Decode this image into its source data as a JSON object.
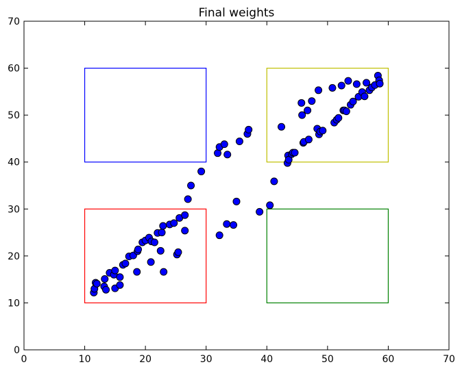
{
  "chart_data": {
    "type": "scatter",
    "title": "Final weights",
    "xlabel": "",
    "ylabel": "",
    "xlim": [
      0,
      70
    ],
    "ylim": [
      0,
      70
    ],
    "xticks": [
      0,
      10,
      20,
      30,
      40,
      50,
      60,
      70
    ],
    "yticks": [
      0,
      10,
      20,
      30,
      40,
      50,
      60,
      70
    ],
    "grid": false,
    "marker_color": "#0000ff",
    "marker_edge_color": "#000000",
    "rectangles": [
      {
        "x0": 10,
        "y0": 40,
        "x1": 30,
        "y1": 60,
        "color": "#0000ff"
      },
      {
        "x0": 40,
        "y0": 40,
        "x1": 60,
        "y1": 60,
        "color": "#bfbf00"
      },
      {
        "x0": 10,
        "y0": 10,
        "x1": 30,
        "y1": 30,
        "color": "#ff0000"
      },
      {
        "x0": 40,
        "y0": 10,
        "x1": 60,
        "y1": 30,
        "color": "#008000"
      }
    ],
    "points": [
      [
        11.5,
        12.2
      ],
      [
        11.6,
        13.0
      ],
      [
        11.8,
        14.3
      ],
      [
        12.0,
        14.1
      ],
      [
        13.2,
        13.5
      ],
      [
        13.3,
        15.1
      ],
      [
        13.5,
        12.8
      ],
      [
        14.1,
        16.4
      ],
      [
        14.8,
        16.0
      ],
      [
        15.0,
        13.1
      ],
      [
        15.0,
        16.9
      ],
      [
        15.8,
        15.5
      ],
      [
        15.8,
        13.8
      ],
      [
        16.3,
        18.1
      ],
      [
        16.7,
        18.4
      ],
      [
        17.3,
        19.9
      ],
      [
        18.0,
        20.1
      ],
      [
        18.6,
        16.6
      ],
      [
        18.7,
        21.0
      ],
      [
        18.8,
        21.4
      ],
      [
        19.5,
        22.9
      ],
      [
        20.0,
        23.3
      ],
      [
        20.6,
        23.9
      ],
      [
        20.9,
        18.7
      ],
      [
        21.0,
        23.1
      ],
      [
        21.5,
        22.9
      ],
      [
        22.0,
        24.9
      ],
      [
        22.5,
        21.1
      ],
      [
        22.7,
        25.0
      ],
      [
        22.9,
        26.4
      ],
      [
        23.0,
        16.6
      ],
      [
        24.0,
        26.7
      ],
      [
        24.7,
        27.0
      ],
      [
        25.2,
        20.3
      ],
      [
        25.4,
        20.8
      ],
      [
        25.6,
        28.1
      ],
      [
        26.5,
        28.7
      ],
      [
        26.5,
        25.4
      ],
      [
        27.0,
        32.1
      ],
      [
        27.5,
        35.0
      ],
      [
        29.2,
        38.0
      ],
      [
        31.9,
        41.9
      ],
      [
        32.2,
        43.2
      ],
      [
        32.2,
        24.4
      ],
      [
        33.0,
        43.8
      ],
      [
        33.4,
        26.8
      ],
      [
        33.5,
        41.6
      ],
      [
        34.5,
        26.6
      ],
      [
        35.0,
        31.6
      ],
      [
        35.5,
        44.4
      ],
      [
        36.8,
        46.0
      ],
      [
        37.0,
        46.9
      ],
      [
        38.8,
        29.4
      ],
      [
        40.5,
        30.8
      ],
      [
        41.2,
        35.9
      ],
      [
        42.4,
        47.5
      ],
      [
        43.4,
        39.8
      ],
      [
        43.5,
        41.4
      ],
      [
        43.6,
        40.5
      ],
      [
        44.1,
        41.7
      ],
      [
        44.3,
        42.0
      ],
      [
        44.6,
        42.0
      ],
      [
        45.7,
        52.6
      ],
      [
        45.8,
        50.0
      ],
      [
        46.0,
        44.1
      ],
      [
        46.1,
        44.3
      ],
      [
        46.7,
        51.0
      ],
      [
        46.9,
        44.8
      ],
      [
        47.4,
        53.0
      ],
      [
        48.3,
        47.1
      ],
      [
        48.5,
        55.3
      ],
      [
        48.6,
        45.9
      ],
      [
        48.8,
        46.5
      ],
      [
        49.2,
        46.7
      ],
      [
        50.8,
        55.8
      ],
      [
        51.1,
        48.4
      ],
      [
        51.5,
        49.0
      ],
      [
        51.8,
        49.4
      ],
      [
        52.3,
        56.3
      ],
      [
        52.6,
        51.0
      ],
      [
        52.8,
        51.0
      ],
      [
        53.1,
        50.8
      ],
      [
        53.4,
        57.3
      ],
      [
        53.8,
        52.2
      ],
      [
        54.2,
        52.9
      ],
      [
        54.8,
        56.6
      ],
      [
        55.1,
        53.9
      ],
      [
        55.7,
        54.9
      ],
      [
        56.1,
        54.0
      ],
      [
        56.4,
        56.9
      ],
      [
        56.9,
        55.3
      ],
      [
        57.3,
        55.9
      ],
      [
        57.8,
        56.4
      ],
      [
        58.3,
        58.4
      ],
      [
        58.5,
        57.4
      ],
      [
        58.6,
        56.7
      ]
    ]
  }
}
